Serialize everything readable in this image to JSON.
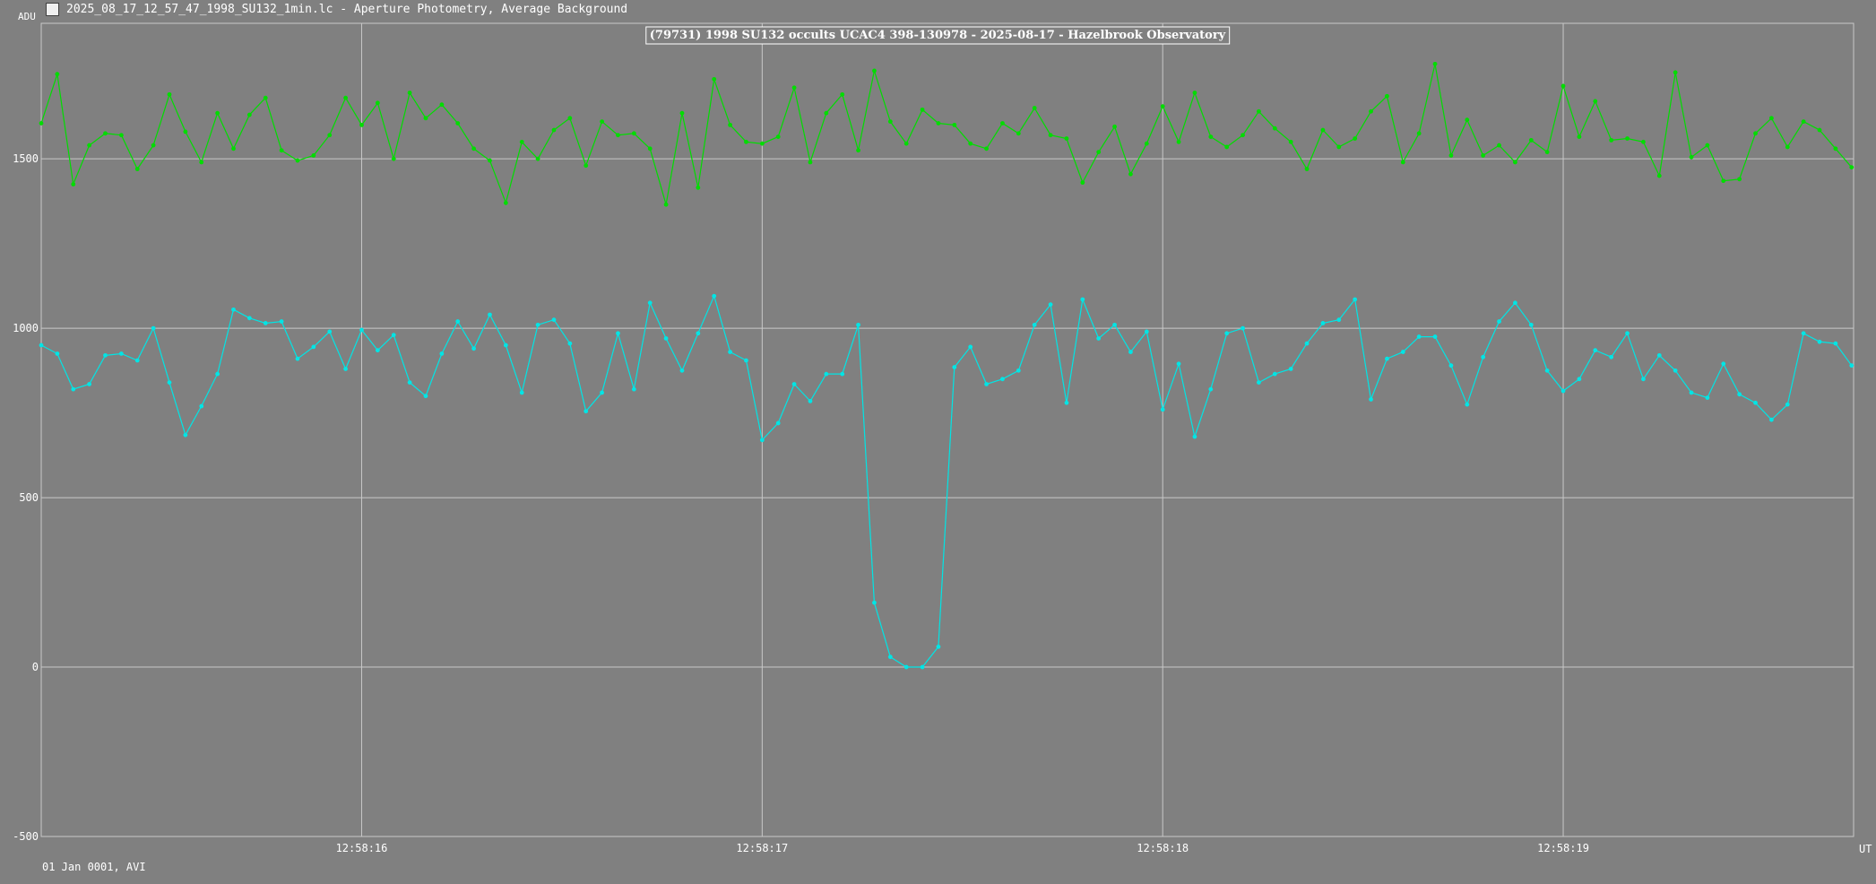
{
  "window": {
    "title": "2025_08_17_12_57_47_1998_SU132_1min.lc - Aperture Photometry, Average Background",
    "icon": "chart-app-icon"
  },
  "footer": {
    "date_note": "01 Jan 0001, AVI"
  },
  "colors": {
    "background": "#808080",
    "grid": "#c8c8c8",
    "target_series": "#00e5e5",
    "comparison_series": "#00dd00",
    "text": "#ffffff"
  },
  "chart_data": {
    "type": "line",
    "title": "(79731) 1998 SU132 occults UCAC4 398-130978 - 2025-08-17 - Hazelbrook Observatory",
    "ylabel": "ADU",
    "xlabel": "UT",
    "ylim": [
      -500,
      1900
    ],
    "xlim": [
      15.2,
      19.725
    ],
    "yticks": [
      -500,
      0,
      500,
      1000,
      1500
    ],
    "xticks": [
      {
        "value": 16,
        "label": "12:58:16"
      },
      {
        "value": 17,
        "label": "12:58:17"
      },
      {
        "value": 18,
        "label": "12:58:18"
      },
      {
        "value": 19,
        "label": "12:58:19"
      }
    ],
    "grid": true,
    "x_start": 15.2,
    "x_step": 0.04,
    "series": [
      {
        "values": [
          1605,
          1750,
          1425,
          1540,
          1575,
          1570,
          1470,
          1540,
          1690,
          1580,
          1490,
          1635,
          1530,
          1630,
          1680,
          1525,
          1495,
          1510,
          1570,
          1680,
          1600,
          1665,
          1500,
          1695,
          1620,
          1660,
          1605,
          1530,
          1495,
          1370,
          1550,
          1500,
          1585,
          1620,
          1480,
          1610,
          1570,
          1575,
          1530,
          1365,
          1635,
          1415,
          1735,
          1600,
          1550,
          1545,
          1565,
          1710,
          1490,
          1635,
          1690,
          1525,
          1760,
          1610,
          1545,
          1645,
          1605,
          1600,
          1545,
          1530,
          1605,
          1575,
          1650,
          1570,
          1560,
          1430,
          1520,
          1595,
          1455,
          1545,
          1655,
          1550,
          1695,
          1565,
          1535,
          1570,
          1640,
          1590,
          1550,
          1470,
          1585,
          1535,
          1560,
          1640,
          1685,
          1490,
          1575,
          1780,
          1510,
          1615,
          1510,
          1540,
          1490,
          1555,
          1520,
          1715,
          1565,
          1670,
          1555,
          1560,
          1550,
          1450,
          1755,
          1505,
          1540,
          1435,
          1440,
          1575,
          1620,
          1535,
          1610,
          1585,
          1530,
          1475
        ]
      },
      {
        "values": [
          950,
          925,
          820,
          835,
          920,
          925,
          905,
          1000,
          840,
          685,
          770,
          865,
          1055,
          1030,
          1015,
          1020,
          910,
          945,
          990,
          880,
          995,
          935,
          980,
          840,
          800,
          925,
          1020,
          940,
          1040,
          950,
          810,
          1010,
          1025,
          955,
          755,
          810,
          985,
          820,
          1075,
          970,
          875,
          985,
          1095,
          930,
          905,
          670,
          720,
          835,
          785,
          865,
          865,
          1010,
          190,
          30,
          0,
          0,
          60,
          885,
          945,
          835,
          850,
          875,
          1010,
          1070,
          780,
          1085,
          970,
          1010,
          930,
          990,
          760,
          895,
          680,
          820,
          985,
          1000,
          840,
          865,
          880,
          955,
          1015,
          1025,
          1085,
          790,
          910,
          930,
          975,
          975,
          890,
          775,
          915,
          1020,
          1075,
          1010,
          875,
          815,
          850,
          935,
          915,
          985,
          850,
          920,
          875,
          810,
          795,
          895,
          805,
          780,
          730,
          775,
          985,
          960,
          955,
          890
        ]
      }
    ]
  }
}
